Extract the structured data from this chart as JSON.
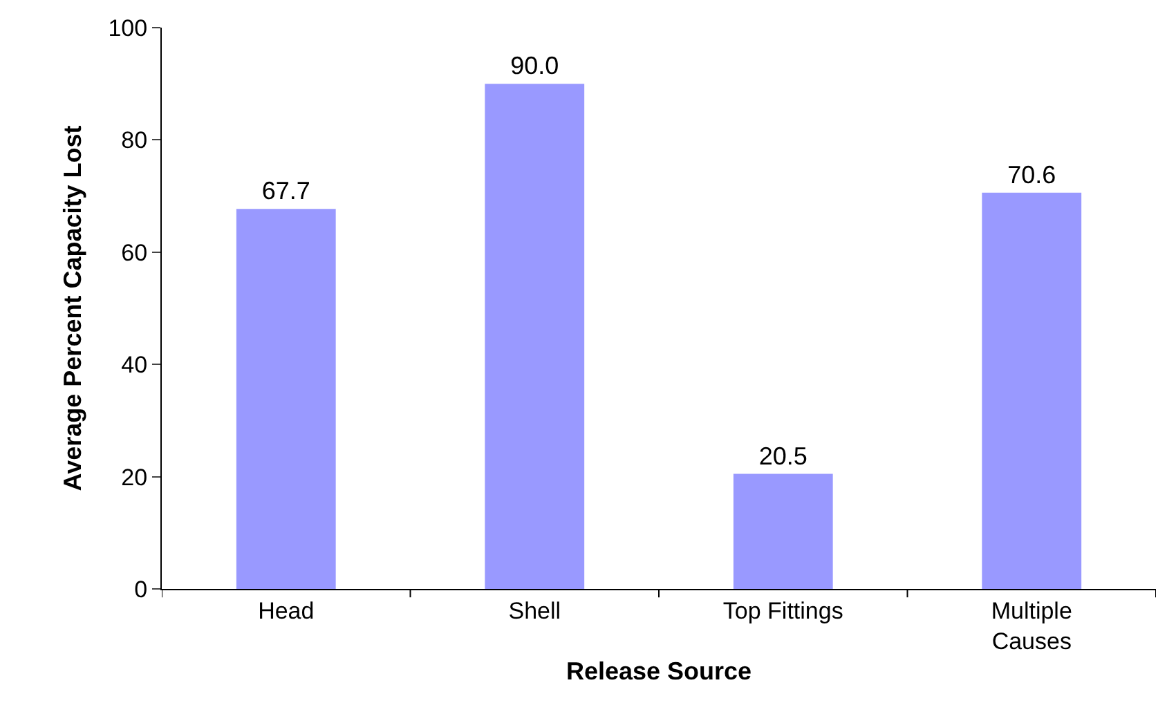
{
  "chart_data": {
    "type": "bar",
    "xlabel": "Release Source",
    "ylabel": "Average Percent Capacity Lost",
    "categories": [
      "Head",
      "Shell",
      "Top Fittings",
      "Multiple Causes"
    ],
    "values": [
      67.7,
      90.0,
      20.5,
      70.6
    ],
    "value_labels": [
      "67.7",
      "90.0",
      "20.5",
      "70.6"
    ],
    "color": "#9999ff",
    "ylim": [
      0,
      100
    ],
    "yticks": [
      0,
      20,
      40,
      60,
      80,
      100
    ],
    "legend": false
  }
}
